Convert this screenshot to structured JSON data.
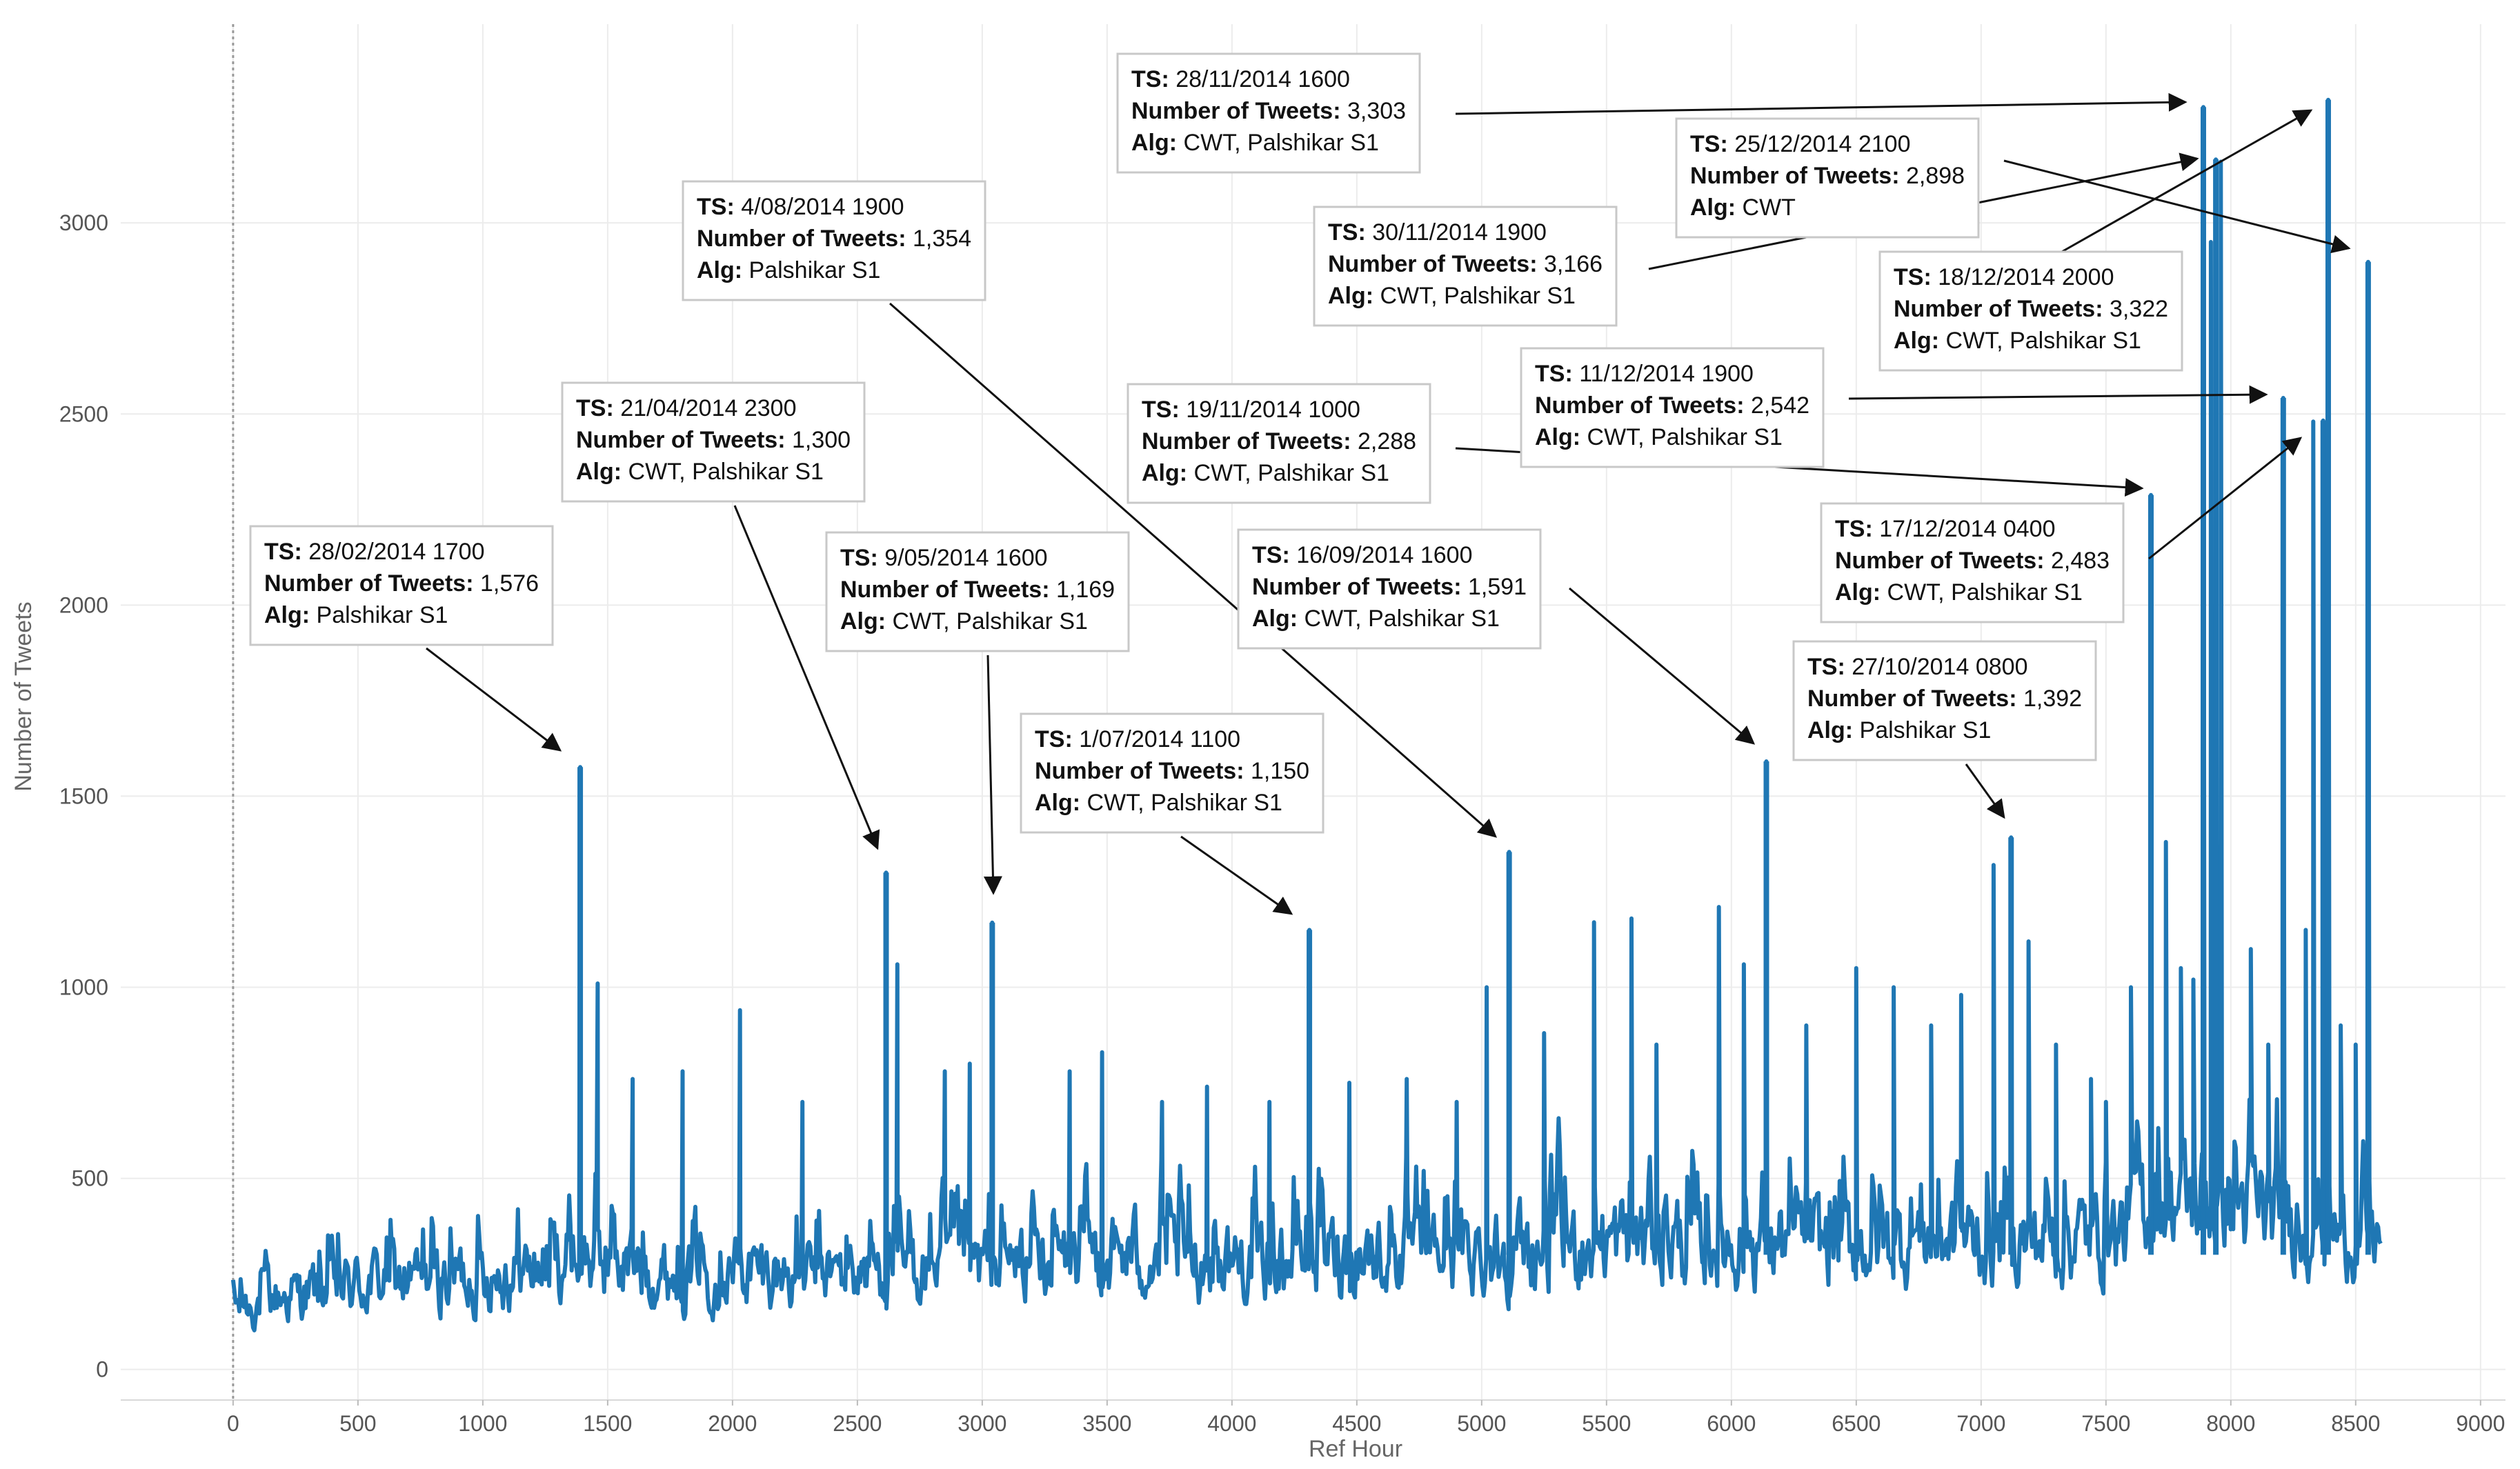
{
  "chart_data": {
    "type": "line",
    "title": "",
    "xlabel": "Ref Hour",
    "ylabel": "Number of Tweets",
    "xlim": [
      -450,
      9100
    ],
    "ylim": [
      -80,
      3520
    ],
    "x_ticks": [
      0,
      500,
      1000,
      1500,
      2000,
      2500,
      3000,
      3500,
      4000,
      4500,
      5000,
      5500,
      6000,
      6500,
      7000,
      7500,
      8000,
      8500,
      9000
    ],
    "y_ticks": [
      0,
      500,
      1000,
      1500,
      2000,
      2500,
      3000
    ],
    "x_tick_labels": [
      "0",
      "500",
      "1000",
      "1500",
      "2000",
      "2500",
      "3000",
      "3500",
      "4000",
      "4500",
      "5000",
      "5500",
      "6000",
      "6500",
      "7000",
      "7500",
      "8000",
      "8500",
      "9000"
    ],
    "y_tick_labels": [
      "0",
      "500",
      "1000",
      "1500",
      "2000",
      "2500",
      "3000"
    ],
    "series": [
      {
        "name": "Number of Tweets",
        "color": "#1f77b4",
        "baseline": {
          "x": [
            0,
            200,
            400,
            600,
            800,
            1000,
            1200,
            1350,
            1500,
            1700,
            2000,
            2300,
            2600,
            2900,
            3200,
            3600,
            4000,
            4400,
            4800,
            5200,
            5600,
            6000,
            6400,
            6800,
            7200,
            7600,
            7650,
            7800,
            8000,
            8200,
            8400,
            8600
          ],
          "low": [
            60,
            70,
            70,
            80,
            80,
            90,
            90,
            100,
            100,
            100,
            100,
            100,
            100,
            100,
            110,
            110,
            110,
            110,
            120,
            120,
            130,
            130,
            130,
            140,
            140,
            150,
            180,
            190,
            190,
            180,
            170,
            170
          ],
          "high": [
            360,
            450,
            500,
            560,
            560,
            600,
            620,
            720,
            720,
            560,
            600,
            560,
            600,
            620,
            650,
            700,
            650,
            700,
            700,
            720,
            780,
            760,
            740,
            760,
            760,
            800,
            1000,
            1000,
            950,
            900,
            750,
            700
          ]
        },
        "secondary_peaks": [
          {
            "x": 1460,
            "y": 1010
          },
          {
            "x": 1600,
            "y": 760
          },
          {
            "x": 1800,
            "y": 780
          },
          {
            "x": 2030,
            "y": 940
          },
          {
            "x": 2280,
            "y": 700
          },
          {
            "x": 2660,
            "y": 1060
          },
          {
            "x": 2850,
            "y": 780
          },
          {
            "x": 2950,
            "y": 800
          },
          {
            "x": 3350,
            "y": 780
          },
          {
            "x": 3480,
            "y": 830
          },
          {
            "x": 3720,
            "y": 700
          },
          {
            "x": 3900,
            "y": 740
          },
          {
            "x": 4150,
            "y": 700
          },
          {
            "x": 4470,
            "y": 750
          },
          {
            "x": 4700,
            "y": 760
          },
          {
            "x": 4900,
            "y": 700
          },
          {
            "x": 5020,
            "y": 1000
          },
          {
            "x": 5250,
            "y": 880
          },
          {
            "x": 5450,
            "y": 1170
          },
          {
            "x": 5600,
            "y": 1180
          },
          {
            "x": 5700,
            "y": 850
          },
          {
            "x": 5950,
            "y": 1210
          },
          {
            "x": 6050,
            "y": 1060
          },
          {
            "x": 6300,
            "y": 900
          },
          {
            "x": 6500,
            "y": 1050
          },
          {
            "x": 6650,
            "y": 1000
          },
          {
            "x": 6800,
            "y": 900
          },
          {
            "x": 6920,
            "y": 980
          },
          {
            "x": 7050,
            "y": 1320
          },
          {
            "x": 7190,
            "y": 1120
          },
          {
            "x": 7300,
            "y": 850
          },
          {
            "x": 7440,
            "y": 760
          },
          {
            "x": 7500,
            "y": 700
          },
          {
            "x": 7600,
            "y": 1000
          },
          {
            "x": 7740,
            "y": 1380
          },
          {
            "x": 7800,
            "y": 1050
          },
          {
            "x": 7850,
            "y": 1020
          },
          {
            "x": 7920,
            "y": 2950
          },
          {
            "x": 7960,
            "y": 3160
          },
          {
            "x": 8080,
            "y": 1100
          },
          {
            "x": 8150,
            "y": 850
          },
          {
            "x": 8300,
            "y": 1150
          },
          {
            "x": 8330,
            "y": 2480
          },
          {
            "x": 8440,
            "y": 900
          },
          {
            "x": 8500,
            "y": 850
          }
        ],
        "annotated_peaks": [
          {
            "x": 1390,
            "y": 1576,
            "ts": "28/02/2014 1700",
            "tweets": "1,576",
            "alg": "Palshikar S1"
          },
          {
            "x": 2615,
            "y": 1300,
            "ts": "21/04/2014 2300",
            "tweets": "1,300",
            "alg": "CWT, Palshikar S1"
          },
          {
            "x": 3040,
            "y": 1169,
            "ts": "9/05/2014 1600",
            "tweets": "1,169",
            "alg": "CWT, Palshikar S1"
          },
          {
            "x": 4310,
            "y": 1150,
            "ts": "1/07/2014 1100",
            "tweets": "1,150",
            "alg": "CWT, Palshikar S1"
          },
          {
            "x": 5110,
            "y": 1354,
            "ts": "4/08/2014 1900",
            "tweets": "1,354",
            "alg": "Palshikar S1"
          },
          {
            "x": 6140,
            "y": 1591,
            "ts": "16/09/2014 1600",
            "tweets": "1,591",
            "alg": "CWT, Palshikar S1"
          },
          {
            "x": 7120,
            "y": 1392,
            "ts": "27/10/2014 0800",
            "tweets": "1,392",
            "alg": "Palshikar S1"
          },
          {
            "x": 7680,
            "y": 2288,
            "ts": "19/11/2014 1000",
            "tweets": "2,288",
            "alg": "CWT, Palshikar S1"
          },
          {
            "x": 7890,
            "y": 3303,
            "ts": "28/11/2014 1600",
            "tweets": "3,303",
            "alg": "CWT, Palshikar S1"
          },
          {
            "x": 7940,
            "y": 3166,
            "ts": "30/11/2014 1900",
            "tweets": "3,166",
            "alg": "CWT, Palshikar S1"
          },
          {
            "x": 8210,
            "y": 2542,
            "ts": "11/12/2014 1900",
            "tweets": "2,542",
            "alg": "CWT, Palshikar S1"
          },
          {
            "x": 8370,
            "y": 2483,
            "ts": "17/12/2014 0400",
            "tweets": "2,483",
            "alg": "CWT, Palshikar S1"
          },
          {
            "x": 8390,
            "y": 3322,
            "ts": "18/12/2014 2000",
            "tweets": "3,322",
            "alg": "CWT, Palshikar S1"
          },
          {
            "x": 8550,
            "y": 2898,
            "ts": "25/12/2014 2100",
            "tweets": "2,898",
            "alg": "CWT"
          }
        ]
      }
    ],
    "annotation_labels": {
      "ts": "TS:",
      "tweets": "Number of Tweets:",
      "alg": "Alg:"
    }
  }
}
